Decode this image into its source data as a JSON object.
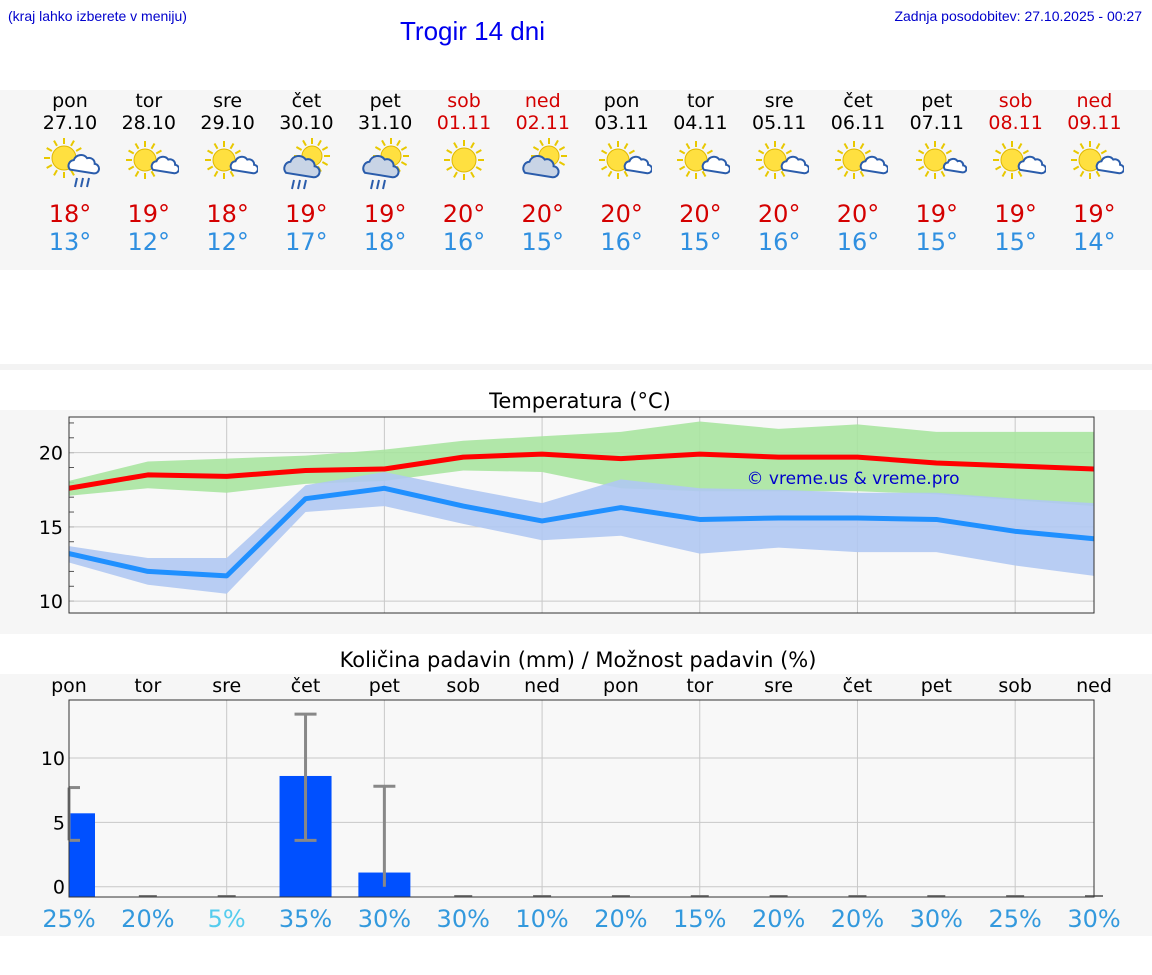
{
  "header": {
    "hint": "(kraj lahko izberete v meniju)",
    "title": "Trogir 14 dni",
    "updated": "Zadnja posodobitev: 27.10.2025 - 00:27"
  },
  "colors": {
    "max_temp": "#d40000",
    "min_temp": "#2f8fe0",
    "weekend": "#d40000",
    "bar": "#0050ff"
  },
  "days": [
    {
      "name": "pon",
      "date": "27.10",
      "weekend": false,
      "icon": "sun-cloud-rain-icon",
      "tmax": "18°",
      "tmin": "13°"
    },
    {
      "name": "tor",
      "date": "28.10",
      "weekend": false,
      "icon": "sun-small-cloud-icon",
      "tmax": "19°",
      "tmin": "12°"
    },
    {
      "name": "sre",
      "date": "29.10",
      "weekend": false,
      "icon": "sun-small-cloud-icon",
      "tmax": "18°",
      "tmin": "12°"
    },
    {
      "name": "čet",
      "date": "30.10",
      "weekend": false,
      "icon": "sun-rain-cloud-icon",
      "tmax": "19°",
      "tmin": "17°"
    },
    {
      "name": "pet",
      "date": "31.10",
      "weekend": false,
      "icon": "sun-rain-cloud-icon",
      "tmax": "19°",
      "tmin": "18°"
    },
    {
      "name": "sob",
      "date": "01.11",
      "weekend": true,
      "icon": "sun-icon",
      "tmax": "20°",
      "tmin": "16°"
    },
    {
      "name": "ned",
      "date": "02.11",
      "weekend": true,
      "icon": "sun-big-cloud-icon",
      "tmax": "20°",
      "tmin": "15°"
    },
    {
      "name": "pon",
      "date": "03.11",
      "weekend": false,
      "icon": "sun-small-cloud-icon",
      "tmax": "20°",
      "tmin": "16°"
    },
    {
      "name": "tor",
      "date": "04.11",
      "weekend": false,
      "icon": "sun-small-cloud-icon",
      "tmax": "20°",
      "tmin": "15°"
    },
    {
      "name": "sre",
      "date": "05.11",
      "weekend": false,
      "icon": "sun-small-cloud-icon",
      "tmax": "20°",
      "tmin": "16°"
    },
    {
      "name": "čet",
      "date": "06.11",
      "weekend": false,
      "icon": "sun-small-cloud-icon",
      "tmax": "20°",
      "tmin": "16°"
    },
    {
      "name": "pet",
      "date": "07.11",
      "weekend": false,
      "icon": "sun-tiny-cloud-icon",
      "tmax": "19°",
      "tmin": "15°"
    },
    {
      "name": "sob",
      "date": "08.11",
      "weekend": true,
      "icon": "sun-small-cloud-icon",
      "tmax": "19°",
      "tmin": "15°"
    },
    {
      "name": "ned",
      "date": "09.11",
      "weekend": true,
      "icon": "sun-small-cloud-icon",
      "tmax": "19°",
      "tmin": "14°"
    }
  ],
  "chart_data": [
    {
      "type": "line",
      "title": "Temperatura (°C)",
      "watermark": "© vreme.us & vreme.pro",
      "x": [
        0,
        1,
        2,
        3,
        4,
        5,
        6,
        7,
        8,
        9,
        10,
        11,
        12,
        13
      ],
      "ylim": [
        9.2,
        22.4
      ],
      "yticks": [
        10,
        15,
        20
      ],
      "grid": true,
      "series": [
        {
          "name": "max",
          "color": "#ff0000",
          "values": [
            17.6,
            18.5,
            18.4,
            18.8,
            18.9,
            19.7,
            19.9,
            19.6,
            19.9,
            19.7,
            19.7,
            19.3,
            19.1,
            18.9
          ],
          "band_low": [
            17.1,
            17.6,
            17.3,
            17.9,
            18.1,
            18.8,
            18.7,
            17.6,
            17.4,
            17.4,
            17.4,
            17.2,
            16.8,
            16.4
          ],
          "band_high": [
            18.1,
            19.4,
            19.6,
            19.8,
            20.2,
            20.8,
            21.1,
            21.4,
            22.1,
            21.6,
            21.9,
            21.4,
            21.4,
            21.4
          ],
          "band_color": "#a8e4a0"
        },
        {
          "name": "min",
          "color": "#2090ff",
          "values": [
            13.2,
            12.0,
            11.7,
            16.9,
            17.6,
            16.4,
            15.4,
            16.3,
            15.5,
            15.6,
            15.6,
            15.5,
            14.7,
            14.2
          ],
          "band_low": [
            12.6,
            11.1,
            10.5,
            16.0,
            16.4,
            15.2,
            14.1,
            14.4,
            13.2,
            13.6,
            13.3,
            13.3,
            12.4,
            11.7
          ],
          "band_high": [
            13.7,
            12.9,
            12.9,
            17.8,
            18.7,
            17.6,
            16.6,
            18.2,
            17.6,
            17.5,
            17.3,
            17.3,
            16.9,
            16.6
          ],
          "band_color": "#b0c8f2"
        }
      ]
    },
    {
      "type": "bar",
      "title": "Količina padavin (mm) / Možnost padavin (%)",
      "categories": [
        "pon",
        "tor",
        "sre",
        "čet",
        "pet",
        "sob",
        "ned",
        "pon",
        "tor",
        "sre",
        "čet",
        "pet",
        "sob",
        "ned"
      ],
      "values": [
        5.7,
        0,
        0,
        8.6,
        1.1,
        0,
        0,
        0,
        0,
        0,
        0,
        0,
        0,
        0
      ],
      "error_low": [
        3.6,
        0,
        0,
        3.6,
        0,
        0,
        0,
        0,
        0,
        0,
        0,
        0,
        0,
        0
      ],
      "error_high": [
        7.7,
        0,
        0,
        13.4,
        7.8,
        0,
        0,
        0,
        0,
        0,
        0,
        0,
        0,
        0
      ],
      "ylim": [
        -0.8,
        14.5
      ],
      "yticks": [
        0,
        5,
        10
      ],
      "probability": [
        "25%",
        "20%",
        "5%",
        "35%",
        "30%",
        "30%",
        "10%",
        "20%",
        "15%",
        "20%",
        "20%",
        "30%",
        "25%",
        "30%"
      ],
      "probability_colors": [
        "#3399dd",
        "#3399dd",
        "#55ccee",
        "#3399dd",
        "#3399dd",
        "#3399dd",
        "#3399dd",
        "#3399dd",
        "#3399dd",
        "#3399dd",
        "#3399dd",
        "#3399dd",
        "#3399dd",
        "#3399dd"
      ]
    }
  ]
}
